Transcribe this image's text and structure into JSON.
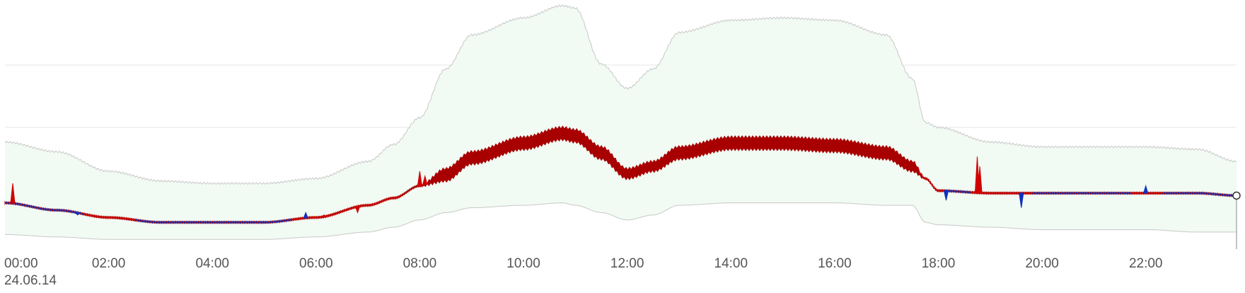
{
  "chart_data": {
    "type": "area",
    "title": "",
    "xlabel": "",
    "ylabel": "",
    "date": "24.06.14",
    "grid": true,
    "legend": "none",
    "xlim": [
      0,
      23.75
    ],
    "ylim": [
      0,
      100
    ],
    "x_ticks": [
      "00:00",
      "02:00",
      "04:00",
      "06:00",
      "08:00",
      "10:00",
      "12:00",
      "14:00",
      "16:00",
      "18:00",
      "20:00",
      "22:00"
    ],
    "x": [
      0,
      1,
      2,
      3,
      4,
      5,
      6,
      7,
      7.5,
      8,
      8.5,
      9,
      10,
      10.75,
      11,
      11.5,
      12,
      12.5,
      13,
      14,
      15,
      16,
      17,
      17.5,
      17.75,
      18,
      19,
      20,
      21,
      22,
      23,
      23.75
    ],
    "series": [
      {
        "role": "band-upper",
        "color": "#cccccc",
        "values": [
          44,
          40,
          32,
          28,
          27,
          27,
          29,
          36,
          43,
          54,
          74,
          88,
          95,
          100,
          99,
          76,
          66,
          74,
          89,
          94,
          95,
          94,
          88,
          70,
          52,
          50,
          44,
          42,
          42,
          42,
          41,
          36
        ]
      },
      {
        "role": "band-lower",
        "color": "#cccccc",
        "values": [
          6,
          5,
          4,
          4,
          4,
          4,
          5,
          7,
          9,
          12,
          15,
          17,
          18,
          19,
          18,
          15,
          12,
          14,
          18,
          19,
          19,
          19,
          18,
          18,
          11,
          10,
          9,
          8,
          8,
          8,
          7,
          7
        ]
      },
      {
        "role": "value-high",
        "color": "#b00000",
        "values": [
          19,
          16,
          13,
          11,
          11,
          11,
          13,
          18,
          21,
          26,
          33,
          40,
          46,
          50,
          49,
          42,
          33,
          36,
          42,
          46,
          46,
          45,
          42,
          36,
          29,
          24,
          23,
          23,
          23,
          23,
          23,
          22
        ]
      },
      {
        "role": "value-low",
        "color": "#b00000",
        "values": [
          19,
          16,
          13,
          11,
          11,
          11,
          13,
          18,
          21,
          26,
          28,
          35,
          41,
          45,
          44,
          37,
          29,
          32,
          37,
          41,
          41,
          40,
          37,
          32,
          29,
          24,
          23,
          23,
          23,
          23,
          23,
          22
        ]
      }
    ],
    "spikes": [
      {
        "x": 0.15,
        "value": 27,
        "color": "#d00000"
      },
      {
        "x": 1.4,
        "value": 14,
        "color": "#1030c0"
      },
      {
        "x": 5.8,
        "value": 15,
        "color": "#1030c0"
      },
      {
        "x": 6.15,
        "value": 14,
        "color": "#d00000"
      },
      {
        "x": 6.8,
        "value": 15,
        "color": "#d00000"
      },
      {
        "x": 8.0,
        "value": 32,
        "color": "#d00000"
      },
      {
        "x": 8.1,
        "value": 30,
        "color": "#d00000"
      },
      {
        "x": 18.15,
        "value": 20,
        "color": "#1030c0"
      },
      {
        "x": 18.75,
        "value": 38,
        "color": "#d00000"
      },
      {
        "x": 18.8,
        "value": 34,
        "color": "#d00000"
      },
      {
        "x": 19.6,
        "value": 17,
        "color": "#1030c0"
      },
      {
        "x": 22.0,
        "value": 26,
        "color": "#1030c0"
      }
    ],
    "colors": {
      "band_fill": "#f1faf3",
      "band_edge": "#c8c8c8",
      "gridline": "#e6e6e6",
      "above_line": "#d00000",
      "below_line": "#1030c0",
      "dark_fill": "#a80000"
    }
  }
}
